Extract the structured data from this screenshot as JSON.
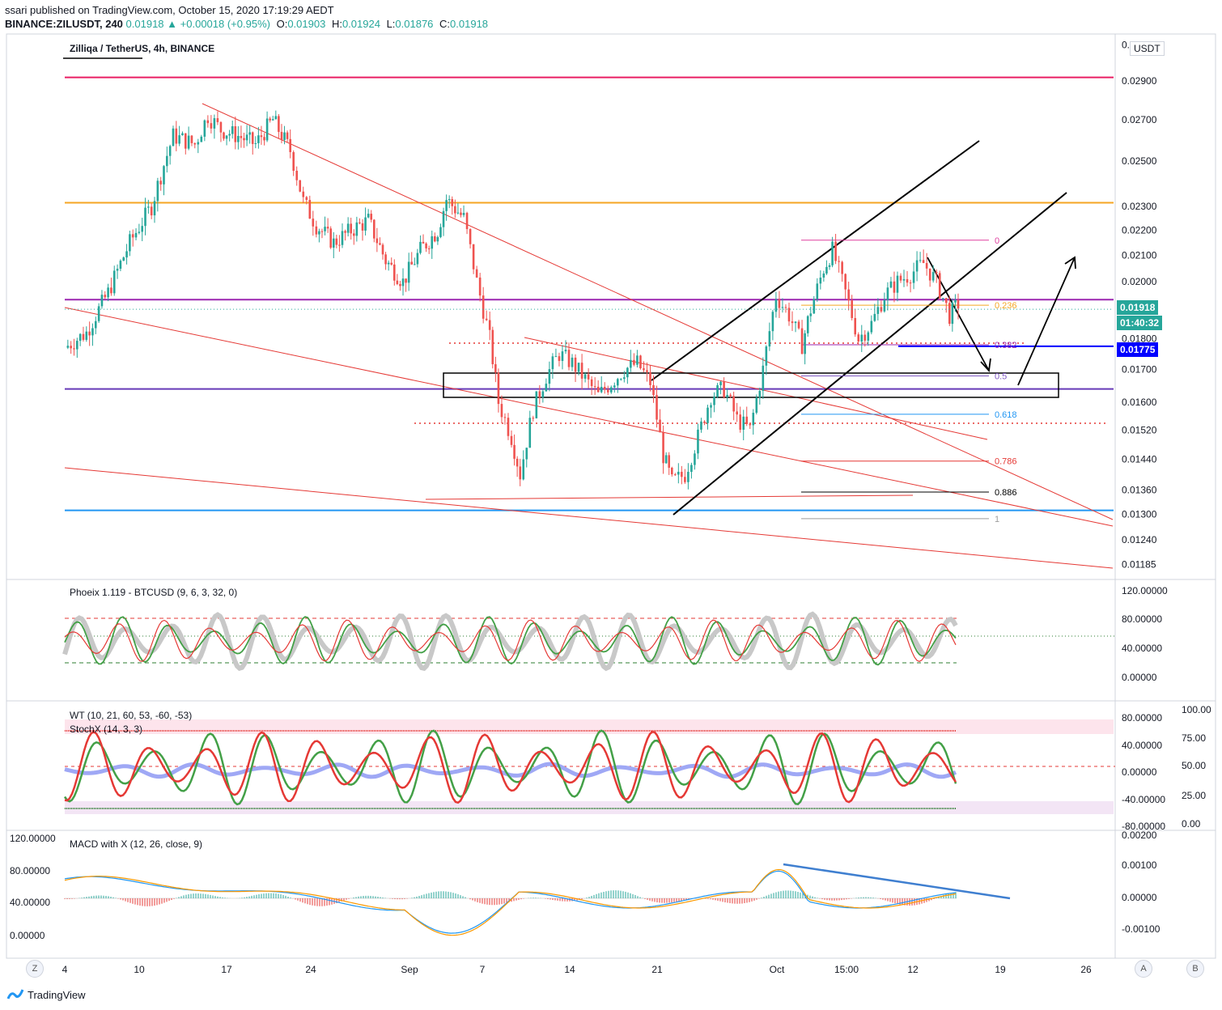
{
  "header": {
    "published": "ssari published on TradingView.com, October 15, 2020 17:19:29 AEDT",
    "symbol": "BINANCE:ZILUSDT, 240",
    "last": "0.01918",
    "change": "+0.00018 (+0.95%)",
    "open_label": "O:",
    "open": "0.01903",
    "high_label": "H:",
    "high": "0.01924",
    "low_label": "L:",
    "low": "0.01876",
    "close_label": "C:",
    "close": "0.01918"
  },
  "chart_title": "Zilliqa / TetherUS, 4h, BINANCE",
  "currency_label": "USDT",
  "price_tag": {
    "value": "0.01918",
    "countdown": "01:40:32",
    "color": "#26a69a"
  },
  "level_tag": {
    "value": "0.01775",
    "color": "#0000ff"
  },
  "chart_data": {
    "type": "line",
    "price_axis": {
      "ticks": [
        "0.03100",
        "0.02900",
        "0.02700",
        "0.02500",
        "0.02300",
        "0.02200",
        "0.02100",
        "0.02000",
        "0.01900",
        "0.01800",
        "0.01700",
        "0.01600",
        "0.01520",
        "0.01440",
        "0.01360",
        "0.01300",
        "0.01240",
        "0.01185"
      ],
      "scale": "log",
      "ylim": [
        0.0117,
        0.0315
      ]
    },
    "time_axis": {
      "ticks": [
        "4",
        "10",
        "17",
        "24",
        "Sep",
        "7",
        "14",
        "21",
        "Oct",
        "15:00",
        "12",
        "19",
        "26"
      ]
    },
    "close_series": [
      {
        "t": 0,
        "v": 0.0177
      },
      {
        "t": 5,
        "v": 0.0182
      },
      {
        "t": 10,
        "v": 0.0196
      },
      {
        "t": 15,
        "v": 0.0215
      },
      {
        "t": 20,
        "v": 0.023
      },
      {
        "t": 25,
        "v": 0.0262
      },
      {
        "t": 30,
        "v": 0.0258
      },
      {
        "t": 33,
        "v": 0.0272
      },
      {
        "t": 36,
        "v": 0.0265
      },
      {
        "t": 40,
        "v": 0.0262
      },
      {
        "t": 44,
        "v": 0.0258
      },
      {
        "t": 48,
        "v": 0.027
      },
      {
        "t": 52,
        "v": 0.0255
      },
      {
        "t": 55,
        "v": 0.0232
      },
      {
        "t": 58,
        "v": 0.0222
      },
      {
        "t": 62,
        "v": 0.0215
      },
      {
        "t": 66,
        "v": 0.022
      },
      {
        "t": 70,
        "v": 0.0224
      },
      {
        "t": 74,
        "v": 0.0208
      },
      {
        "t": 78,
        "v": 0.02
      },
      {
        "t": 82,
        "v": 0.0212
      },
      {
        "t": 86,
        "v": 0.022
      },
      {
        "t": 88,
        "v": 0.0233
      },
      {
        "t": 92,
        "v": 0.0225
      },
      {
        "t": 95,
        "v": 0.02
      },
      {
        "t": 98,
        "v": 0.018
      },
      {
        "t": 100,
        "v": 0.016
      },
      {
        "t": 103,
        "v": 0.015
      },
      {
        "t": 105,
        "v": 0.014
      },
      {
        "t": 108,
        "v": 0.0158
      },
      {
        "t": 111,
        "v": 0.0168
      },
      {
        "t": 114,
        "v": 0.0175
      },
      {
        "t": 117,
        "v": 0.0172
      },
      {
        "t": 120,
        "v": 0.0167
      },
      {
        "t": 123,
        "v": 0.0162
      },
      {
        "t": 126,
        "v": 0.0166
      },
      {
        "t": 129,
        "v": 0.017
      },
      {
        "t": 132,
        "v": 0.0172
      },
      {
        "t": 135,
        "v": 0.0166
      },
      {
        "t": 138,
        "v": 0.0145
      },
      {
        "t": 140,
        "v": 0.0138
      },
      {
        "t": 143,
        "v": 0.014
      },
      {
        "t": 146,
        "v": 0.015
      },
      {
        "t": 149,
        "v": 0.0162
      },
      {
        "t": 152,
        "v": 0.0164
      },
      {
        "t": 155,
        "v": 0.0155
      },
      {
        "t": 158,
        "v": 0.0152
      },
      {
        "t": 161,
        "v": 0.017
      },
      {
        "t": 164,
        "v": 0.0195
      },
      {
        "t": 167,
        "v": 0.0188
      },
      {
        "t": 170,
        "v": 0.0178
      },
      {
        "t": 172,
        "v": 0.019
      },
      {
        "t": 175,
        "v": 0.0205
      },
      {
        "t": 177,
        "v": 0.0212
      },
      {
        "t": 180,
        "v": 0.0196
      },
      {
        "t": 183,
        "v": 0.018
      },
      {
        "t": 186,
        "v": 0.0185
      },
      {
        "t": 189,
        "v": 0.0195
      },
      {
        "t": 192,
        "v": 0.02
      },
      {
        "t": 195,
        "v": 0.0203
      },
      {
        "t": 198,
        "v": 0.0207
      },
      {
        "t": 201,
        "v": 0.02
      },
      {
        "t": 204,
        "v": 0.0188
      },
      {
        "t": 206,
        "v": 0.0192
      }
    ],
    "horizontal_levels": [
      {
        "value": 0.0292,
        "color": "#e91e63"
      },
      {
        "value": 0.02315,
        "color": "#f5a623"
      },
      {
        "value": 0.01935,
        "color": "#9c27b0"
      },
      {
        "value": 0.0164,
        "color": "#673ab7"
      },
      {
        "value": 0.0131,
        "color": "#2196f3"
      },
      {
        "value": 0.01775,
        "color": "#0000ff"
      }
    ],
    "fibonacci": [
      {
        "label": "0",
        "value": 0.0216,
        "color": "#e040a0"
      },
      {
        "label": "0.236",
        "value": 0.01915,
        "color": "#f5a623"
      },
      {
        "label": "0.382",
        "value": 0.0178,
        "color": "#9c27b0"
      },
      {
        "label": "0.5",
        "value": 0.0168,
        "color": "#7e57c2"
      },
      {
        "label": "0.618",
        "value": 0.01565,
        "color": "#2196f3"
      },
      {
        "label": "0.786",
        "value": 0.01435,
        "color": "#e53935"
      },
      {
        "label": "0.886",
        "value": 0.01355,
        "color": "#000000"
      },
      {
        "label": "1",
        "value": 0.0129,
        "color": "#9e9e9e"
      }
    ]
  },
  "indicators": {
    "phoeix": {
      "label": "Phoeix 1.119 - BTCUSD (9, 6, 3, 32, 0)",
      "axis": [
        "120.00000",
        "80.00000",
        "40.00000",
        "0.00000"
      ]
    },
    "wt": {
      "label": "WT (10, 21, 60, 53, -60, -53)",
      "axis": [
        "80.00000",
        "40.00000",
        "0.00000",
        "-40.00000",
        "-80.00000"
      ]
    },
    "stochx": {
      "label": "StochX (14, 3, 3)",
      "axis": [
        "100.00",
        "75.00",
        "50.00",
        "25.00",
        "0.00"
      ]
    },
    "macd": {
      "label": "MACD with X (12, 26, close, 9)",
      "axis_right": [
        "0.00200",
        "0.00100",
        "0.00000",
        "-0.00100"
      ],
      "axis_left": [
        "120.00000",
        "80.00000",
        "40.00000",
        "0.00000"
      ]
    }
  },
  "footer": {
    "brand": "TradingView",
    "z_btn": "Z",
    "a_btn": "A",
    "b_btn": "B"
  }
}
